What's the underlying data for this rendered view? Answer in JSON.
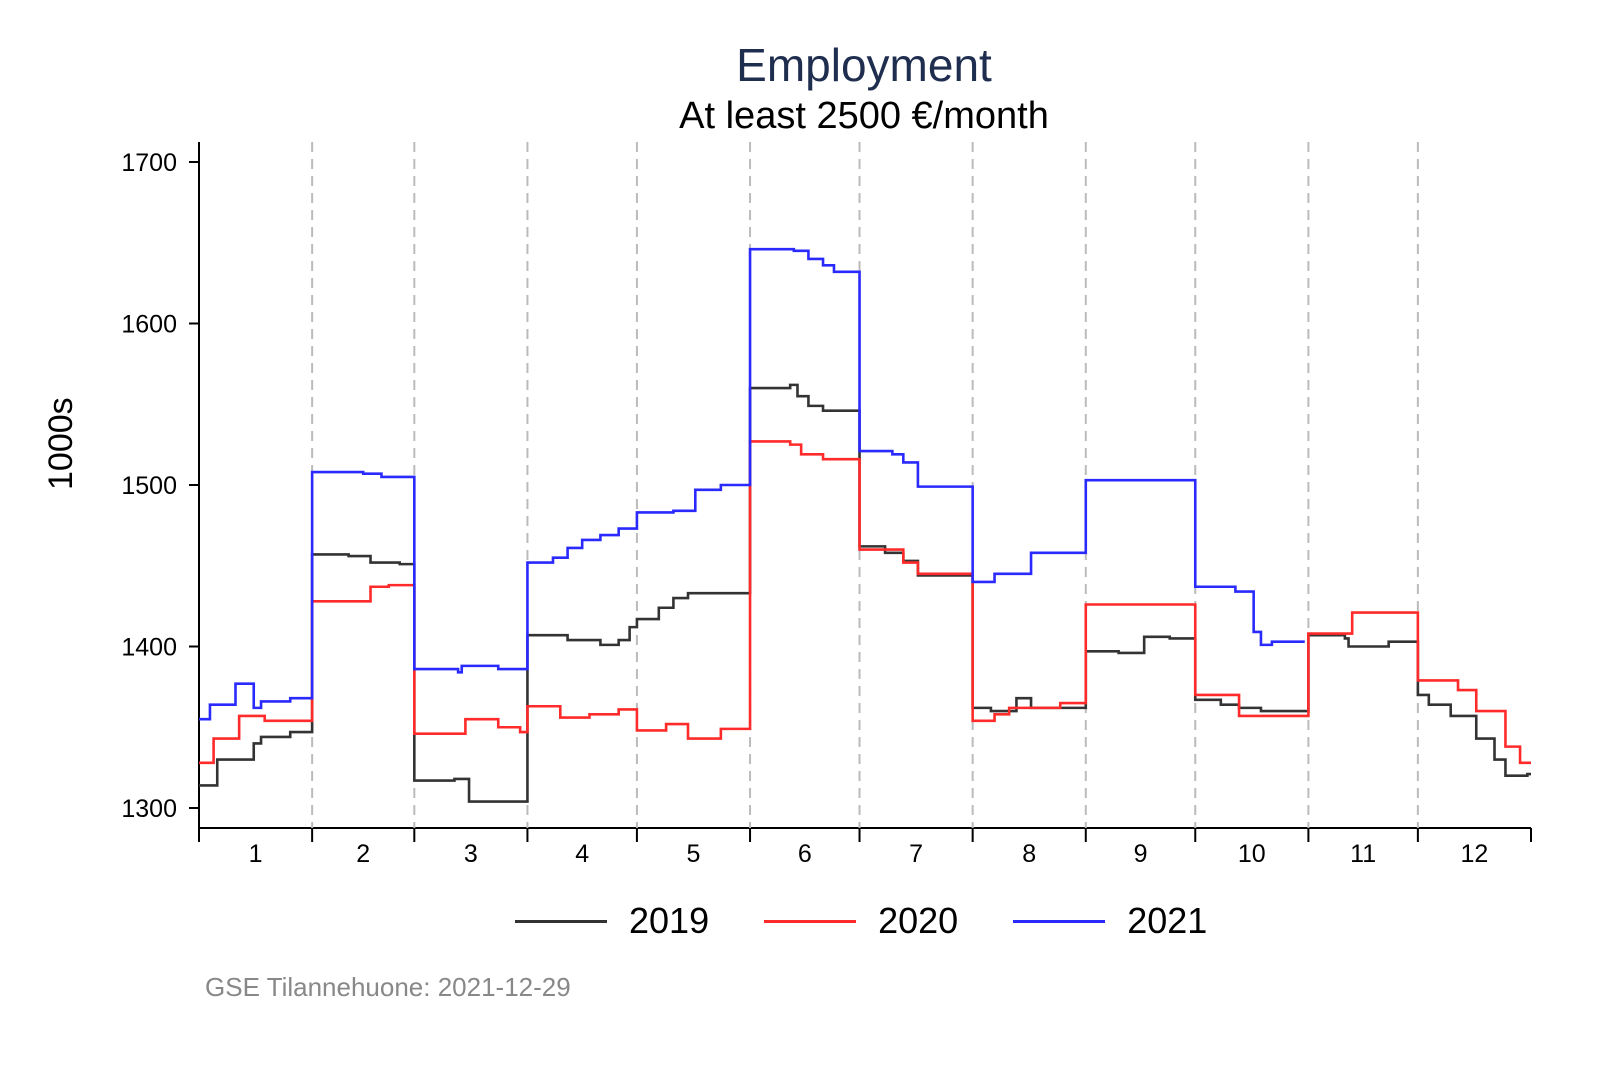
{
  "chart_data": {
    "type": "line",
    "step": true,
    "title": "Employment",
    "subtitle": "At least 2500 €/month",
    "ylabel": "1000s",
    "xlabel": "",
    "ylim": [
      1290,
      1712
    ],
    "yticks": [
      1300,
      1400,
      1500,
      1600,
      1700
    ],
    "xlim_days": [
      1,
      366
    ],
    "month_start_days": [
      1,
      32,
      60,
      91,
      121,
      152,
      182,
      213,
      244,
      274,
      305,
      335,
      366
    ],
    "xtick_labels": [
      "1",
      "2",
      "3",
      "4",
      "5",
      "6",
      "7",
      "8",
      "9",
      "10",
      "11",
      "12"
    ],
    "grid": "dashed vertical lines at month boundaries",
    "legend_position": "bottom",
    "source": "GSE Tilannehuone: 2021-12-29",
    "series": [
      {
        "name": "2019",
        "color": "#333333",
        "end_day": 366,
        "points": [
          [
            1,
            1314
          ],
          [
            6,
            1330
          ],
          [
            16,
            1340
          ],
          [
            18,
            1344
          ],
          [
            26,
            1347
          ],
          [
            32,
            1457
          ],
          [
            42,
            1456
          ],
          [
            48,
            1452
          ],
          [
            56,
            1451
          ],
          [
            60,
            1317
          ],
          [
            71,
            1318
          ],
          [
            75,
            1304
          ],
          [
            91,
            1407
          ],
          [
            102,
            1404
          ],
          [
            111,
            1401
          ],
          [
            116,
            1404
          ],
          [
            119,
            1412
          ],
          [
            121,
            1417
          ],
          [
            127,
            1424
          ],
          [
            131,
            1430
          ],
          [
            135,
            1433
          ],
          [
            152,
            1560
          ],
          [
            163,
            1562
          ],
          [
            165,
            1555
          ],
          [
            168,
            1549
          ],
          [
            172,
            1546
          ],
          [
            182,
            1462
          ],
          [
            189,
            1458
          ],
          [
            194,
            1453
          ],
          [
            198,
            1444
          ],
          [
            213,
            1362
          ],
          [
            218,
            1360
          ],
          [
            225,
            1368
          ],
          [
            229,
            1362
          ],
          [
            244,
            1397
          ],
          [
            253,
            1396
          ],
          [
            260,
            1406
          ],
          [
            267,
            1405
          ],
          [
            274,
            1367
          ],
          [
            281,
            1364
          ],
          [
            286,
            1362
          ],
          [
            292,
            1360
          ],
          [
            305,
            1407
          ],
          [
            315,
            1405
          ],
          [
            316,
            1400
          ],
          [
            327,
            1403
          ],
          [
            335,
            1370
          ],
          [
            338,
            1364
          ],
          [
            344,
            1357
          ],
          [
            351,
            1343
          ],
          [
            356,
            1330
          ],
          [
            359,
            1320
          ],
          [
            365,
            1321
          ]
        ]
      },
      {
        "name": "2020",
        "color": "#ff2a2a",
        "end_day": 366,
        "points": [
          [
            1,
            1328
          ],
          [
            5,
            1343
          ],
          [
            12,
            1357
          ],
          [
            19,
            1354
          ],
          [
            32,
            1428
          ],
          [
            45,
            1428
          ],
          [
            48,
            1437
          ],
          [
            53,
            1438
          ],
          [
            60,
            1346
          ],
          [
            74,
            1355
          ],
          [
            83,
            1350
          ],
          [
            89,
            1347
          ],
          [
            91,
            1363
          ],
          [
            100,
            1356
          ],
          [
            108,
            1358
          ],
          [
            116,
            1361
          ],
          [
            121,
            1348
          ],
          [
            129,
            1352
          ],
          [
            135,
            1343
          ],
          [
            144,
            1349
          ],
          [
            152,
            1527
          ],
          [
            163,
            1525
          ],
          [
            166,
            1519
          ],
          [
            172,
            1516
          ],
          [
            182,
            1460
          ],
          [
            194,
            1452
          ],
          [
            198,
            1445
          ],
          [
            213,
            1354
          ],
          [
            219,
            1358
          ],
          [
            223,
            1362
          ],
          [
            237,
            1365
          ],
          [
            244,
            1426
          ],
          [
            274,
            1370
          ],
          [
            286,
            1357
          ],
          [
            305,
            1408
          ],
          [
            317,
            1421
          ],
          [
            335,
            1379
          ],
          [
            346,
            1373
          ],
          [
            351,
            1360
          ],
          [
            359,
            1338
          ],
          [
            363,
            1328
          ]
        ]
      },
      {
        "name": "2021",
        "color": "#2a2aff",
        "end_day": 304,
        "points": [
          [
            1,
            1355
          ],
          [
            4,
            1364
          ],
          [
            11,
            1377
          ],
          [
            16,
            1362
          ],
          [
            18,
            1366
          ],
          [
            26,
            1368
          ],
          [
            32,
            1508
          ],
          [
            46,
            1507
          ],
          [
            51,
            1505
          ],
          [
            60,
            1386
          ],
          [
            72,
            1384
          ],
          [
            73,
            1388
          ],
          [
            83,
            1386
          ],
          [
            91,
            1452
          ],
          [
            98,
            1455
          ],
          [
            102,
            1461
          ],
          [
            106,
            1466
          ],
          [
            111,
            1469
          ],
          [
            116,
            1473
          ],
          [
            121,
            1483
          ],
          [
            131,
            1484
          ],
          [
            137,
            1497
          ],
          [
            144,
            1500
          ],
          [
            152,
            1646
          ],
          [
            164,
            1645
          ],
          [
            168,
            1640
          ],
          [
            172,
            1636
          ],
          [
            175,
            1632
          ],
          [
            182,
            1521
          ],
          [
            191,
            1519
          ],
          [
            194,
            1514
          ],
          [
            198,
            1499
          ],
          [
            213,
            1440
          ],
          [
            219,
            1445
          ],
          [
            229,
            1458
          ],
          [
            244,
            1503
          ],
          [
            274,
            1437
          ],
          [
            285,
            1434
          ],
          [
            290,
            1409
          ],
          [
            292,
            1401
          ],
          [
            295,
            1403
          ]
        ]
      }
    ]
  }
}
